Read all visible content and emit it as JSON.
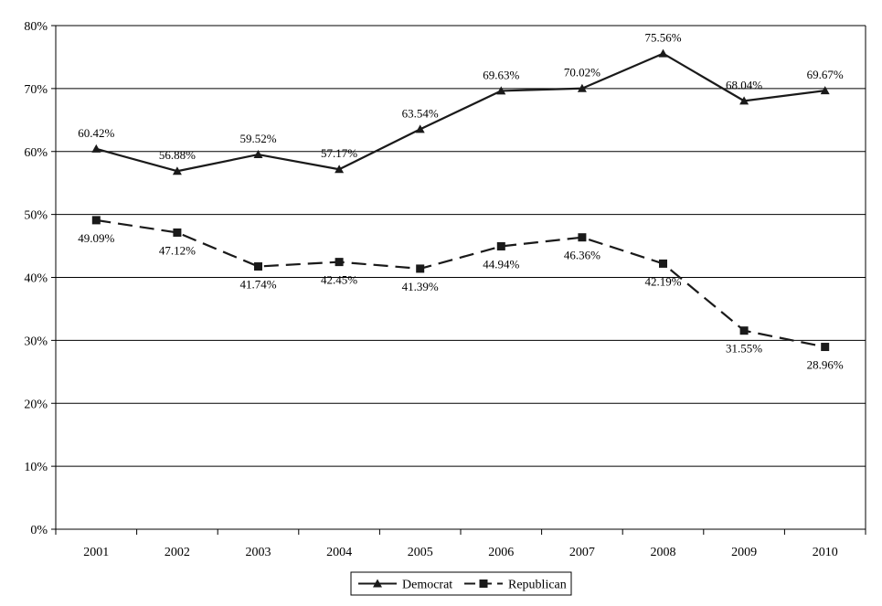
{
  "chart_data": {
    "type": "line",
    "categories": [
      "2001",
      "2002",
      "2003",
      "2004",
      "2005",
      "2006",
      "2007",
      "2008",
      "2009",
      "2010"
    ],
    "ylim": [
      0,
      80
    ],
    "yticks": [
      "0%",
      "10%",
      "20%",
      "30%",
      "40%",
      "50%",
      "60%",
      "70%",
      "80%"
    ],
    "grid": true,
    "legend_position": "bottom-center",
    "series": [
      {
        "name": "Democrat",
        "marker": "triangle",
        "line_style": "solid",
        "color": "#1a1a1a",
        "values": [
          60.42,
          56.88,
          59.52,
          57.17,
          63.54,
          69.63,
          70.02,
          75.56,
          68.04,
          69.67
        ],
        "labels": [
          "60.42%",
          "56.88%",
          "59.52%",
          "57.17%",
          "63.54%",
          "69.63%",
          "70.02%",
          "75.56%",
          "68.04%",
          "69.67%"
        ],
        "label_position": "above"
      },
      {
        "name": "Republican",
        "marker": "square",
        "line_style": "dashed",
        "color": "#1a1a1a",
        "values": [
          49.09,
          47.12,
          41.74,
          42.45,
          41.39,
          44.94,
          46.36,
          42.19,
          31.55,
          28.96
        ],
        "labels": [
          "49.09%",
          "47.12%",
          "41.74%",
          "42.45%",
          "41.39%",
          "44.94%",
          "46.36%",
          "42.19%",
          "31.55%",
          "28.96%"
        ],
        "label_position": "below"
      }
    ]
  }
}
